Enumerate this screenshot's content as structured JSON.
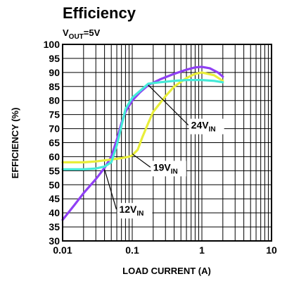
{
  "chart_data": {
    "type": "line",
    "title": "Efficiency",
    "subtitle": {
      "main": "V",
      "sub": "OUT",
      "rest": "=5V"
    },
    "xlabel": "LOAD CURRENT (A)",
    "ylabel": "EFFICIENCY (%)",
    "x_scale": "log",
    "xlim": [
      0.01,
      10
    ],
    "ylim": [
      30,
      100
    ],
    "x_ticks": [
      "0.01",
      "0.1",
      "1",
      "10"
    ],
    "y_ticks": [
      "30",
      "35",
      "40",
      "45",
      "50",
      "55",
      "60",
      "65",
      "70",
      "75",
      "80",
      "85",
      "90",
      "95",
      "100"
    ],
    "grid": true,
    "series": [
      {
        "name": "12V",
        "label": {
          "main": "12V",
          "sub": "IN"
        },
        "color": "#8f3ff4",
        "points": [
          [
            0.01,
            37.5
          ],
          [
            0.015,
            43
          ],
          [
            0.02,
            47
          ],
          [
            0.03,
            52
          ],
          [
            0.04,
            56
          ],
          [
            0.05,
            60
          ],
          [
            0.06,
            66
          ],
          [
            0.07,
            72
          ],
          [
            0.08,
            76
          ],
          [
            0.1,
            80
          ],
          [
            0.13,
            83
          ],
          [
            0.17,
            85.5
          ],
          [
            0.25,
            87.5
          ],
          [
            0.4,
            89.5
          ],
          [
            0.6,
            91
          ],
          [
            0.8,
            91.8
          ],
          [
            1.0,
            92
          ],
          [
            1.3,
            91.5
          ],
          [
            1.7,
            90
          ],
          [
            2.0,
            88.5
          ]
        ]
      },
      {
        "name": "19V",
        "label": {
          "main": "19V",
          "sub": "IN"
        },
        "color": "#e8ee3a",
        "points": [
          [
            0.01,
            58
          ],
          [
            0.02,
            58
          ],
          [
            0.03,
            58.3
          ],
          [
            0.05,
            59
          ],
          [
            0.07,
            59.5
          ],
          [
            0.09,
            60
          ],
          [
            0.1,
            60.5
          ],
          [
            0.12,
            62.5
          ],
          [
            0.14,
            67
          ],
          [
            0.17,
            72
          ],
          [
            0.2,
            76
          ],
          [
            0.3,
            81.5
          ],
          [
            0.4,
            85
          ],
          [
            0.6,
            88
          ],
          [
            0.8,
            89.5
          ],
          [
            1.0,
            90
          ],
          [
            1.5,
            89
          ],
          [
            2.0,
            87
          ]
        ]
      },
      {
        "name": "24V",
        "label": {
          "main": "24V",
          "sub": "IN"
        },
        "color": "#45ead8",
        "points": [
          [
            0.01,
            55.5
          ],
          [
            0.02,
            55.5
          ],
          [
            0.03,
            55.8
          ],
          [
            0.04,
            56.5
          ],
          [
            0.05,
            58
          ],
          [
            0.06,
            64
          ],
          [
            0.07,
            71
          ],
          [
            0.08,
            77
          ],
          [
            0.1,
            81
          ],
          [
            0.13,
            83.5
          ],
          [
            0.17,
            86
          ],
          [
            0.25,
            86.5
          ],
          [
            0.4,
            87
          ],
          [
            0.6,
            87.3
          ],
          [
            1.0,
            87.3
          ],
          [
            1.5,
            87
          ],
          [
            2.0,
            86.5
          ]
        ]
      }
    ],
    "annotations": [
      {
        "series": "24V",
        "text": {
          "main": "24V",
          "sub": "IN"
        },
        "text_at": [
          0.7,
          70
        ],
        "arrow_to": [
          0.17,
          85.5
        ]
      },
      {
        "series": "19V",
        "text": {
          "main": "19V",
          "sub": "IN"
        },
        "text_at": [
          0.2,
          55
        ],
        "arrow_to": [
          0.1,
          61
        ]
      },
      {
        "series": "12V",
        "text": {
          "main": "12V",
          "sub": "IN"
        },
        "text_at": [
          0.065,
          40
        ],
        "arrow_to": [
          0.04,
          55.5
        ]
      }
    ]
  }
}
